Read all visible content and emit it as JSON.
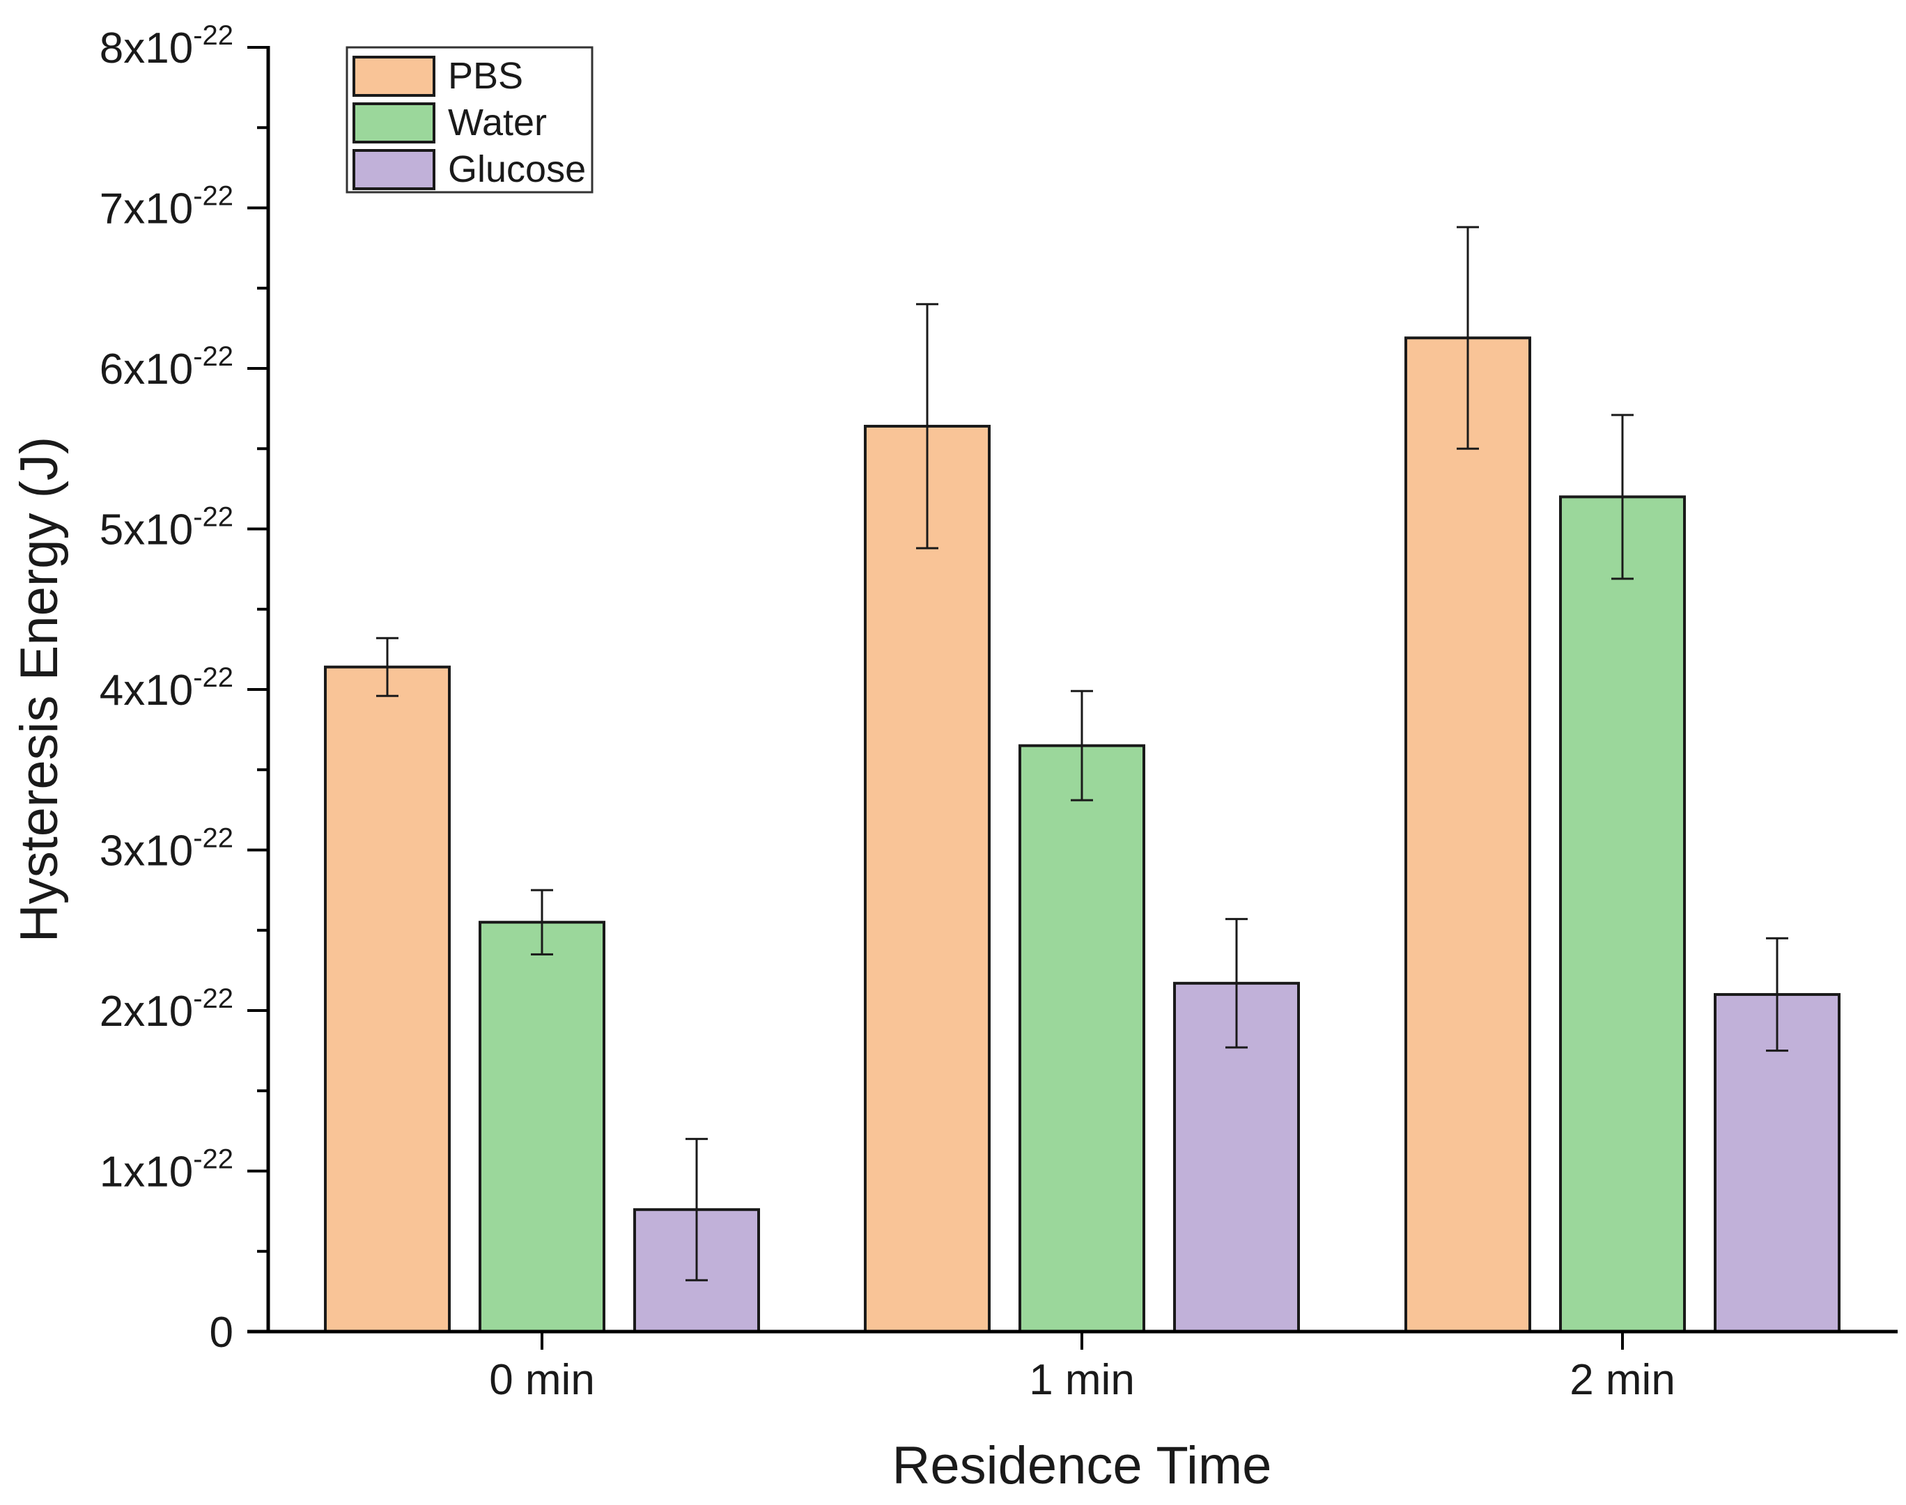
{
  "chart_data": {
    "type": "bar",
    "xlabel": "Residence Time",
    "ylabel": "Hysteresis Energy (J)",
    "categories": [
      "0 min",
      "1 min",
      "2 min"
    ],
    "ylim": [
      0,
      8e-22
    ],
    "yticks": [
      {
        "value": 0,
        "mantissa": "0",
        "exp": ""
      },
      {
        "value": 1e-22,
        "mantissa": "1x10",
        "exp": "-22"
      },
      {
        "value": 2e-22,
        "mantissa": "2x10",
        "exp": "-22"
      },
      {
        "value": 3e-22,
        "mantissa": "3x10",
        "exp": "-22"
      },
      {
        "value": 4e-22,
        "mantissa": "4x10",
        "exp": "-22"
      },
      {
        "value": 5e-22,
        "mantissa": "5x10",
        "exp": "-22"
      },
      {
        "value": 6e-22,
        "mantissa": "6x10",
        "exp": "-22"
      },
      {
        "value": 7e-22,
        "mantissa": "7x10",
        "exp": "-22"
      },
      {
        "value": 8e-22,
        "mantissa": "8x10",
        "exp": "-22"
      }
    ],
    "series": [
      {
        "name": "PBS",
        "color": "#F9C497",
        "values": [
          4.14e-22,
          5.64e-22,
          6.19e-22
        ],
        "errors": [
          1.8e-23,
          7.6e-23,
          6.9e-23
        ]
      },
      {
        "name": "Water",
        "color": "#9BD79B",
        "values": [
          2.55e-22,
          3.65e-22,
          5.2e-22
        ],
        "errors": [
          2e-23,
          3.4e-23,
          5.1e-23
        ]
      },
      {
        "name": "Glucose",
        "color": "#C1B1D9",
        "values": [
          7.6e-23,
          2.17e-22,
          2.1e-22
        ],
        "errors": [
          4.4e-23,
          4e-23,
          3.5e-23
        ]
      }
    ],
    "legend": {
      "position": "top-left"
    }
  }
}
